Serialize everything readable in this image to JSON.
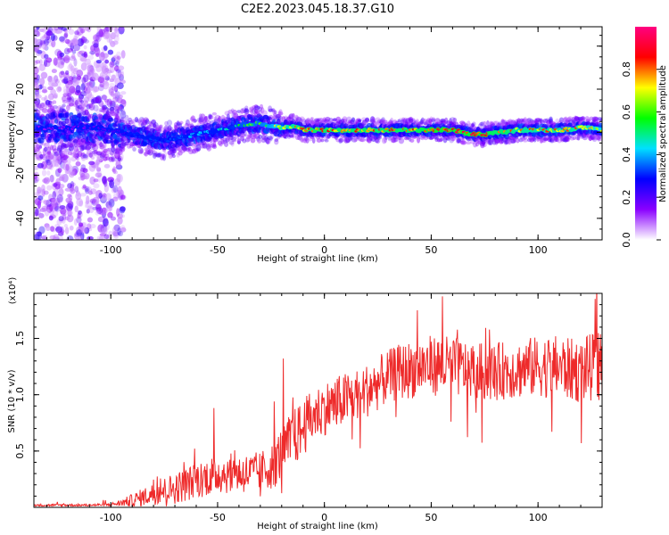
{
  "chart_data": [
    {
      "type": "heatmap",
      "title": "C2E2.2023.045.18.37.G10",
      "xlabel": "Height of straight line (km)",
      "ylabel": "Frequency (Hz)",
      "xlim": [
        -136,
        130
      ],
      "ylim": [
        -50,
        49
      ],
      "xticks": [
        -100,
        -50,
        0,
        50,
        100
      ],
      "yticks": [
        -40,
        -20,
        0,
        20,
        40
      ],
      "colorbar": {
        "label": "Normalized spectral amplitude",
        "range": [
          0.0,
          1.0
        ],
        "ticks": [
          0.0,
          0.2,
          0.4,
          0.6,
          0.8
        ],
        "tick_labels": [
          "0.0",
          "0.2",
          "0.4",
          "0.6",
          "0.8"
        ],
        "colormap": [
          "#ffffff",
          "#8a00ff",
          "#0000ff",
          "#00e0ff",
          "#00ff00",
          "#ffff00",
          "#ff0000",
          "#ff0080"
        ]
      },
      "ridge": {
        "x": [
          -120,
          -105,
          -95,
          -90,
          -85,
          -80,
          -75,
          -70,
          -65,
          -60,
          -55,
          -50,
          -45,
          -40,
          -35,
          -30,
          -25,
          -20,
          -15,
          -10,
          -5,
          0,
          10,
          20,
          30,
          40,
          50,
          60,
          65,
          70,
          75,
          80,
          85,
          90,
          100,
          110,
          120,
          125,
          130
        ],
        "y": [
          2,
          2,
          0,
          -1,
          -2,
          -3,
          -4,
          -3,
          -2,
          -1,
          0,
          1,
          2,
          3,
          4,
          4,
          3,
          2,
          3,
          1,
          1,
          1,
          1,
          1,
          1,
          1,
          1,
          1,
          0,
          -1,
          -1,
          0,
          0,
          1,
          1,
          1,
          2,
          2,
          1
        ],
        "amplitude": [
          0.15,
          0.2,
          0.25,
          0.3,
          0.35,
          0.35,
          0.3,
          0.35,
          0.4,
          0.45,
          0.45,
          0.5,
          0.5,
          0.55,
          0.6,
          0.6,
          0.65,
          0.75,
          0.8,
          0.85,
          0.85,
          0.85,
          0.85,
          0.85,
          0.85,
          0.85,
          0.9,
          0.9,
          0.9,
          0.9,
          0.9,
          0.85,
          0.85,
          0.8,
          0.8,
          0.8,
          0.8,
          0.75,
          0.7
        ]
      },
      "noise_region": {
        "x_range": [
          -136,
          -94
        ],
        "y_range": [
          -50,
          49
        ]
      }
    },
    {
      "type": "line",
      "title": "",
      "xlabel": "Height of straight line (km)",
      "ylabel": "SNR (10 * v/v)",
      "y_multiplier": "(x10⁴)",
      "xlim": [
        -136,
        130
      ],
      "ylim": [
        0,
        1.9
      ],
      "xticks": [
        -100,
        -50,
        0,
        50,
        100
      ],
      "yticks": [
        0.5,
        1.0,
        1.5
      ],
      "ytick_labels": [
        "0.5",
        "1.0",
        "1.5"
      ],
      "series": [
        {
          "color": "#ee2a2a",
          "envelope_x": [
            -136,
            -110,
            -100,
            -95,
            -90,
            -85,
            -80,
            -75,
            -70,
            -65,
            -60,
            -55,
            -50,
            -45,
            -40,
            -35,
            -30,
            -25,
            -20,
            -15,
            -10,
            -5,
            0,
            5,
            10,
            15,
            20,
            25,
            30,
            35,
            40,
            45,
            50,
            55,
            60,
            65,
            70,
            75,
            80,
            85,
            90,
            95,
            100,
            105,
            110,
            115,
            120,
            125,
            130
          ],
          "envelope_mean": [
            0.02,
            0.02,
            0.025,
            0.04,
            0.06,
            0.09,
            0.12,
            0.15,
            0.17,
            0.2,
            0.24,
            0.27,
            0.3,
            0.3,
            0.3,
            0.3,
            0.32,
            0.36,
            0.48,
            0.6,
            0.7,
            0.82,
            0.88,
            0.92,
            0.96,
            1.0,
            1.04,
            1.1,
            1.16,
            1.2,
            1.22,
            1.25,
            1.26,
            1.26,
            1.25,
            1.23,
            1.22,
            1.2,
            1.2,
            1.22,
            1.22,
            1.24,
            1.25,
            1.25,
            1.25,
            1.22,
            1.22,
            1.24,
            1.25
          ],
          "envelope_spread": [
            0.01,
            0.01,
            0.015,
            0.03,
            0.06,
            0.08,
            0.1,
            0.12,
            0.14,
            0.15,
            0.16,
            0.17,
            0.18,
            0.18,
            0.18,
            0.18,
            0.18,
            0.2,
            0.24,
            0.26,
            0.26,
            0.24,
            0.24,
            0.24,
            0.24,
            0.24,
            0.24,
            0.24,
            0.24,
            0.25,
            0.26,
            0.26,
            0.27,
            0.27,
            0.27,
            0.26,
            0.26,
            0.26,
            0.26,
            0.26,
            0.26,
            0.27,
            0.27,
            0.28,
            0.28,
            0.28,
            0.3,
            0.3,
            0.3
          ]
        }
      ]
    }
  ]
}
